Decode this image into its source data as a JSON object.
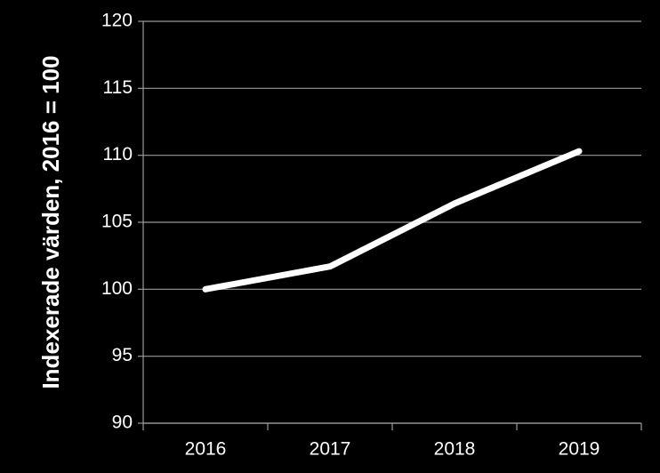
{
  "chart_data": {
    "type": "line",
    "y_label": "Indexerade värden, 2016 = 100",
    "categories": [
      "2016",
      "2017",
      "2018",
      "2019"
    ],
    "values": [
      100,
      101.7,
      106.4,
      110.3
    ],
    "color": "#ffffff",
    "ylim": [
      90,
      120
    ],
    "yticks": [
      90,
      95,
      100,
      105,
      110,
      115,
      120
    ],
    "grid": true
  }
}
